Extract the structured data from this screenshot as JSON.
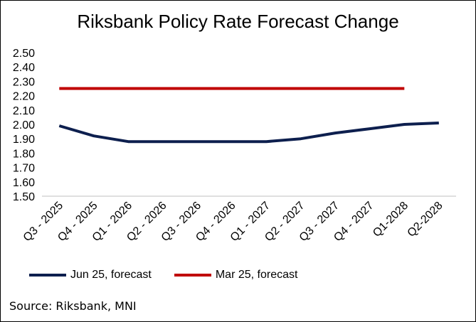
{
  "chart_data": {
    "type": "line",
    "title": "Riksbank Policy Rate Forecast Change",
    "categories": [
      "Q3 - 2025",
      "Q4 - 2025",
      "Q1 - 2026",
      "Q2 - 2026",
      "Q3 - 2026",
      "Q4 - 2026",
      "Q1 - 2027",
      "Q2 - 2027",
      "Q3 - 2027",
      "Q4 - 2027",
      "Q1-2028",
      "Q2-2028"
    ],
    "series": [
      {
        "name": "Jun 25, forecast",
        "color": "#0d1f4e",
        "values": [
          1.99,
          1.92,
          1.88,
          1.88,
          1.88,
          1.88,
          1.88,
          1.9,
          1.94,
          1.97,
          2.0,
          2.01
        ]
      },
      {
        "name": "Mar 25, forecast",
        "color": "#c00000",
        "values": [
          2.25,
          2.25,
          2.25,
          2.25,
          2.25,
          2.25,
          2.25,
          2.25,
          2.25,
          2.25,
          2.25,
          null
        ]
      }
    ],
    "ylim": [
      1.5,
      2.5
    ],
    "yticks": [
      "2.50",
      "2.40",
      "2.30",
      "2.20",
      "2.10",
      "2.00",
      "1.90",
      "1.80",
      "1.70",
      "1.60",
      "1.50"
    ],
    "xlabel": "",
    "ylabel": "",
    "grid": false,
    "legend_position": "bottom-left"
  },
  "source": "Source: Riksbank, MNI"
}
